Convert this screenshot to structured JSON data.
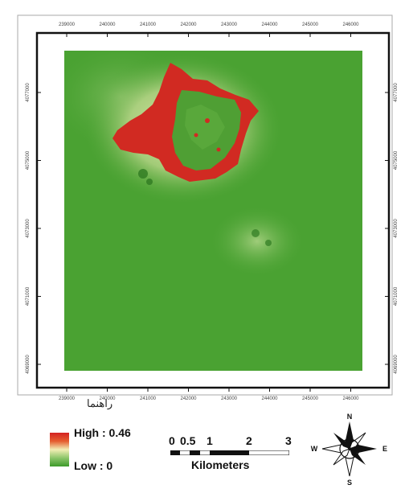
{
  "map": {
    "x_ticks": [
      "239000",
      "240000",
      "241000",
      "242000",
      "243000",
      "244000",
      "245000",
      "246000"
    ],
    "y_ticks": [
      "4077000",
      "4075000",
      "4073000",
      "4071000",
      "4069000"
    ]
  },
  "legend": {
    "title": "راهنما",
    "high_label": "High : 0.46",
    "low_label": "Low : 0",
    "high_color": "#d42222",
    "mid_color": "#f2eeb4",
    "low_color": "#3c9a2a"
  },
  "scale_bar": {
    "labels": [
      "0",
      "0.5",
      "1",
      "2",
      "3"
    ],
    "unit": "Kilometers"
  },
  "north_arrow": {
    "icon": "compass-rose-icon",
    "n": "N",
    "s": "S",
    "e": "E",
    "w": "W"
  }
}
